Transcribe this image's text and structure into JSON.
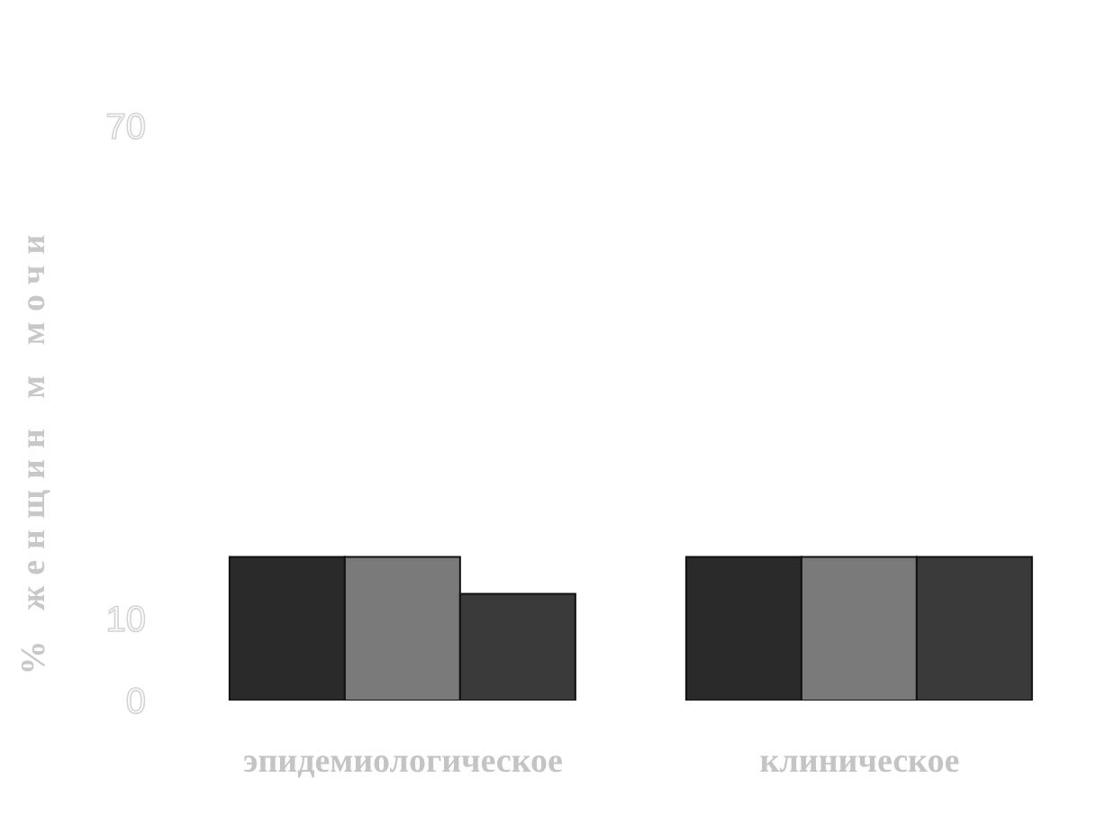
{
  "chart_data": {
    "type": "bar",
    "ylabel": "% женщин м мочи",
    "categories": [
      "эпидемиологическое",
      "клиническое"
    ],
    "series": [
      {
        "color": "#2a2a2a",
        "values": [
          17.5,
          17.5
        ]
      },
      {
        "color": "#7a7a7a",
        "values": [
          17.5,
          17.5
        ]
      },
      {
        "color": "#3a3a3a",
        "values": [
          13,
          17.5
        ]
      }
    ],
    "ylim": [
      0,
      70
    ],
    "yticks": [
      0,
      10,
      70
    ],
    "grid": false,
    "legend": false
  }
}
